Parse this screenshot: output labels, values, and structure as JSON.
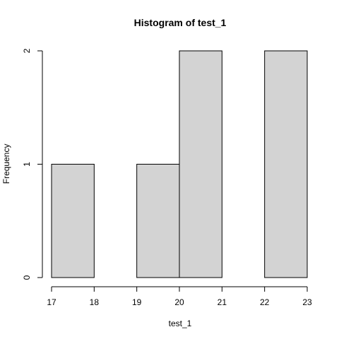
{
  "chart_data": {
    "type": "bar",
    "title": "Histogram of test_1",
    "xlabel": "test_1",
    "ylabel": "Frequency",
    "bins": [
      {
        "x0": 17,
        "x1": 18,
        "count": 1
      },
      {
        "x0": 18,
        "x1": 19,
        "count": 0
      },
      {
        "x0": 19,
        "x1": 20,
        "count": 1
      },
      {
        "x0": 20,
        "x1": 21,
        "count": 2
      },
      {
        "x0": 21,
        "x1": 22,
        "count": 0
      },
      {
        "x0": 22,
        "x1": 23,
        "count": 2
      }
    ],
    "xlim": [
      17,
      23
    ],
    "ylim": [
      0,
      2
    ],
    "xticks": [
      "17",
      "18",
      "19",
      "20",
      "21",
      "22",
      "23"
    ],
    "yticks": [
      "0",
      "1",
      "2"
    ],
    "grid": false,
    "legend": "none",
    "bar_fill": "#d3d3d3",
    "bar_stroke": "#000000"
  }
}
